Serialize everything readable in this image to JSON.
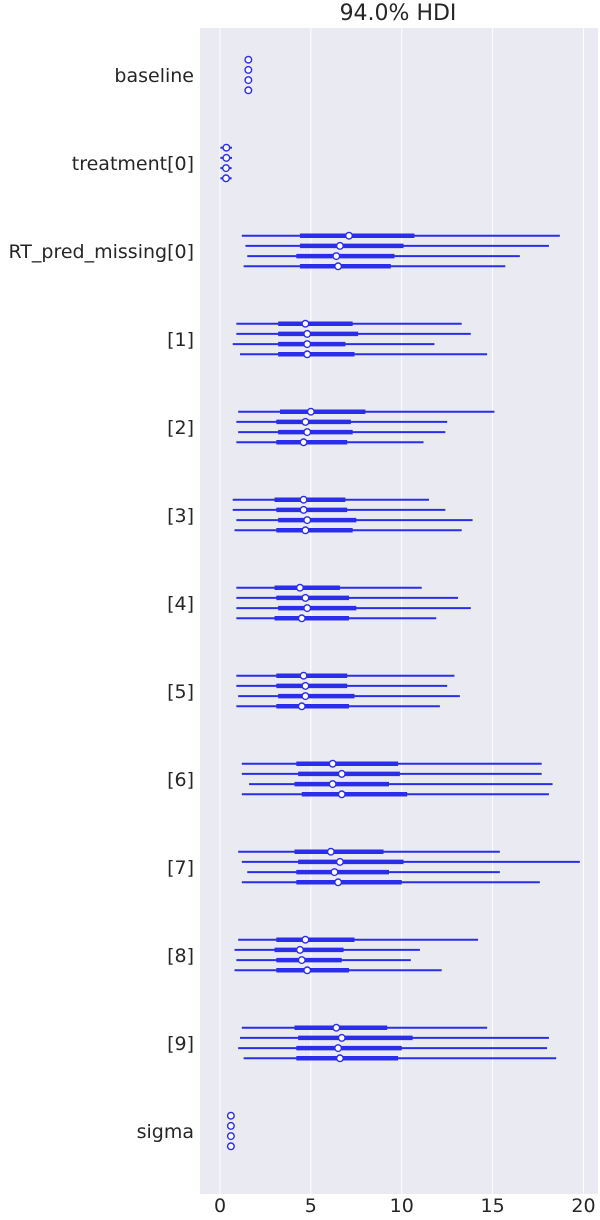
{
  "chart_data": {
    "type": "forest",
    "title": "94.0% HDI",
    "xlim": [
      -1.1,
      20.8
    ],
    "x_ticks": [
      0,
      5,
      10,
      15,
      20
    ],
    "grid": true,
    "colors": {
      "line": "#2a2eec",
      "marker_fill": "#ffffff",
      "background": "#eaeaf2",
      "grid": "#ffffff",
      "text": "#262626"
    },
    "variables": [
      {
        "label": "baseline",
        "chains": [
          {
            "mean": 1.56,
            "iqr": [
              1.5,
              1.63
            ],
            "hdi": [
              1.42,
              1.72
            ]
          },
          {
            "mean": 1.56,
            "iqr": [
              1.5,
              1.63
            ],
            "hdi": [
              1.42,
              1.72
            ]
          },
          {
            "mean": 1.56,
            "iqr": [
              1.5,
              1.63
            ],
            "hdi": [
              1.42,
              1.72
            ]
          },
          {
            "mean": 1.56,
            "iqr": [
              1.5,
              1.63
            ],
            "hdi": [
              1.42,
              1.72
            ]
          }
        ]
      },
      {
        "label": "treatment[0]",
        "chains": [
          {
            "mean": 0.35,
            "iqr": [
              0.22,
              0.47
            ],
            "hdi": [
              0.02,
              0.66
            ]
          },
          {
            "mean": 0.35,
            "iqr": [
              0.22,
              0.47
            ],
            "hdi": [
              0.02,
              0.66
            ]
          },
          {
            "mean": 0.33,
            "iqr": [
              0.21,
              0.46
            ],
            "hdi": [
              0.02,
              0.64
            ]
          },
          {
            "mean": 0.33,
            "iqr": [
              0.21,
              0.46
            ],
            "hdi": [
              0.02,
              0.64
            ]
          }
        ]
      },
      {
        "label": "RT_pred_missing[0]",
        "chains": [
          {
            "mean": 7.1,
            "iqr": [
              4.4,
              10.7
            ],
            "hdi": [
              1.2,
              18.7
            ]
          },
          {
            "mean": 6.6,
            "iqr": [
              4.4,
              10.1
            ],
            "hdi": [
              1.4,
              18.1
            ]
          },
          {
            "mean": 6.4,
            "iqr": [
              4.2,
              9.6
            ],
            "hdi": [
              1.5,
              16.5
            ]
          },
          {
            "mean": 6.5,
            "iqr": [
              4.4,
              9.4
            ],
            "hdi": [
              1.3,
              15.7
            ]
          }
        ]
      },
      {
        "label": "[1]",
        "chains": [
          {
            "mean": 4.7,
            "iqr": [
              3.2,
              7.3
            ],
            "hdi": [
              0.9,
              13.3
            ]
          },
          {
            "mean": 4.8,
            "iqr": [
              3.2,
              7.6
            ],
            "hdi": [
              0.9,
              13.8
            ]
          },
          {
            "mean": 4.8,
            "iqr": [
              3.2,
              6.9
            ],
            "hdi": [
              0.7,
              11.8
            ]
          },
          {
            "mean": 4.8,
            "iqr": [
              3.2,
              7.4
            ],
            "hdi": [
              1.1,
              14.7
            ]
          }
        ]
      },
      {
        "label": "[2]",
        "chains": [
          {
            "mean": 5.0,
            "iqr": [
              3.3,
              8.0
            ],
            "hdi": [
              1.0,
              15.1
            ]
          },
          {
            "mean": 4.7,
            "iqr": [
              3.1,
              7.2
            ],
            "hdi": [
              0.9,
              12.5
            ]
          },
          {
            "mean": 4.8,
            "iqr": [
              3.2,
              7.3
            ],
            "hdi": [
              1.0,
              12.4
            ]
          },
          {
            "mean": 4.6,
            "iqr": [
              3.1,
              7.0
            ],
            "hdi": [
              0.9,
              11.2
            ]
          }
        ]
      },
      {
        "label": "[3]",
        "chains": [
          {
            "mean": 4.6,
            "iqr": [
              3.0,
              6.9
            ],
            "hdi": [
              0.7,
              11.5
            ]
          },
          {
            "mean": 4.6,
            "iqr": [
              3.1,
              7.0
            ],
            "hdi": [
              0.7,
              12.4
            ]
          },
          {
            "mean": 4.8,
            "iqr": [
              3.2,
              7.5
            ],
            "hdi": [
              0.9,
              13.9
            ]
          },
          {
            "mean": 4.7,
            "iqr": [
              3.1,
              7.3
            ],
            "hdi": [
              0.8,
              13.3
            ]
          }
        ]
      },
      {
        "label": "[4]",
        "chains": [
          {
            "mean": 4.4,
            "iqr": [
              3.0,
              6.6
            ],
            "hdi": [
              0.9,
              11.1
            ]
          },
          {
            "mean": 4.7,
            "iqr": [
              3.1,
              7.1
            ],
            "hdi": [
              0.9,
              13.1
            ]
          },
          {
            "mean": 4.8,
            "iqr": [
              3.2,
              7.5
            ],
            "hdi": [
              0.9,
              13.8
            ]
          },
          {
            "mean": 4.5,
            "iqr": [
              3.0,
              7.1
            ],
            "hdi": [
              0.9,
              11.9
            ]
          }
        ]
      },
      {
        "label": "[5]",
        "chains": [
          {
            "mean": 4.6,
            "iqr": [
              3.1,
              7.0
            ],
            "hdi": [
              0.9,
              12.9
            ]
          },
          {
            "mean": 4.7,
            "iqr": [
              3.1,
              7.0
            ],
            "hdi": [
              0.9,
              12.5
            ]
          },
          {
            "mean": 4.7,
            "iqr": [
              3.2,
              7.4
            ],
            "hdi": [
              1.0,
              13.2
            ]
          },
          {
            "mean": 4.5,
            "iqr": [
              3.1,
              7.1
            ],
            "hdi": [
              0.9,
              12.1
            ]
          }
        ]
      },
      {
        "label": "[6]",
        "chains": [
          {
            "mean": 6.2,
            "iqr": [
              4.2,
              9.8
            ],
            "hdi": [
              1.2,
              17.7
            ]
          },
          {
            "mean": 6.7,
            "iqr": [
              4.3,
              9.9
            ],
            "hdi": [
              1.2,
              17.7
            ]
          },
          {
            "mean": 6.2,
            "iqr": [
              4.1,
              9.3
            ],
            "hdi": [
              1.6,
              18.3
            ]
          },
          {
            "mean": 6.7,
            "iqr": [
              4.5,
              10.3
            ],
            "hdi": [
              1.2,
              18.1
            ]
          }
        ]
      },
      {
        "label": "[7]",
        "chains": [
          {
            "mean": 6.1,
            "iqr": [
              4.1,
              9.0
            ],
            "hdi": [
              1.0,
              15.4
            ]
          },
          {
            "mean": 6.6,
            "iqr": [
              4.3,
              10.1
            ],
            "hdi": [
              1.2,
              19.8
            ]
          },
          {
            "mean": 6.3,
            "iqr": [
              4.2,
              9.3
            ],
            "hdi": [
              1.5,
              15.4
            ]
          },
          {
            "mean": 6.5,
            "iqr": [
              4.2,
              10.0
            ],
            "hdi": [
              1.2,
              17.6
            ]
          }
        ]
      },
      {
        "label": "[8]",
        "chains": [
          {
            "mean": 4.7,
            "iqr": [
              3.1,
              7.4
            ],
            "hdi": [
              1.0,
              14.2
            ]
          },
          {
            "mean": 4.4,
            "iqr": [
              3.0,
              6.8
            ],
            "hdi": [
              0.8,
              11.0
            ]
          },
          {
            "mean": 4.5,
            "iqr": [
              3.1,
              6.7
            ],
            "hdi": [
              0.9,
              10.5
            ]
          },
          {
            "mean": 4.8,
            "iqr": [
              3.1,
              7.1
            ],
            "hdi": [
              0.8,
              12.2
            ]
          }
        ]
      },
      {
        "label": "[9]",
        "chains": [
          {
            "mean": 6.4,
            "iqr": [
              4.1,
              9.2
            ],
            "hdi": [
              1.2,
              14.7
            ]
          },
          {
            "mean": 6.7,
            "iqr": [
              4.3,
              10.6
            ],
            "hdi": [
              1.1,
              18.1
            ]
          },
          {
            "mean": 6.5,
            "iqr": [
              4.2,
              10.0
            ],
            "hdi": [
              1.0,
              18.0
            ]
          },
          {
            "mean": 6.6,
            "iqr": [
              4.2,
              9.8
            ],
            "hdi": [
              1.3,
              18.5
            ]
          }
        ]
      },
      {
        "label": "sigma",
        "chains": [
          {
            "mean": 0.6,
            "iqr": [
              0.57,
              0.63
            ],
            "hdi": [
              0.53,
              0.68
            ]
          },
          {
            "mean": 0.6,
            "iqr": [
              0.57,
              0.63
            ],
            "hdi": [
              0.53,
              0.68
            ]
          },
          {
            "mean": 0.6,
            "iqr": [
              0.57,
              0.63
            ],
            "hdi": [
              0.53,
              0.68
            ]
          },
          {
            "mean": 0.6,
            "iqr": [
              0.57,
              0.63
            ],
            "hdi": [
              0.53,
              0.68
            ]
          }
        ]
      }
    ]
  }
}
